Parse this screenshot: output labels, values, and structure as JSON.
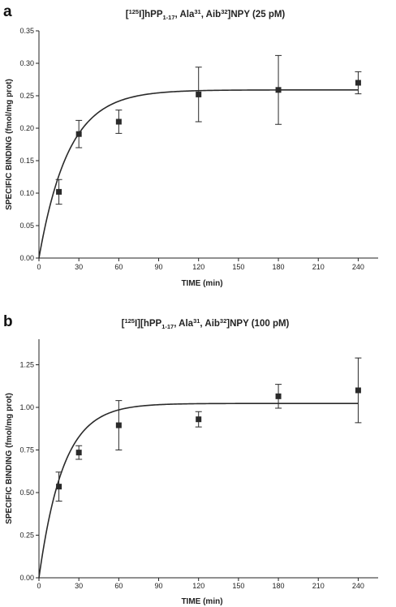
{
  "chart_data": [
    {
      "type": "scatter",
      "panel": "a",
      "title": {
        "parts": [
          {
            "t": "["
          },
          {
            "t": "125",
            "sup": true
          },
          {
            "t": "I]hPP"
          },
          {
            "t": "1-17",
            "sub": true
          },
          {
            "t": ", Ala"
          },
          {
            "t": "31",
            "sup": true
          },
          {
            "t": ", Aib"
          },
          {
            "t": "32",
            "sup": true
          },
          {
            "t": "]NPY (25 pM)"
          }
        ]
      },
      "xlabel": "TIME (min)",
      "ylabel": "SPECIFIC BINDING (fmol/mg prot)",
      "xlim": [
        0,
        255
      ],
      "ylim": [
        0,
        0.35
      ],
      "xticks": [
        0,
        30,
        60,
        90,
        120,
        150,
        180,
        210,
        240
      ],
      "xtick_labels": [
        "0",
        "30",
        "60",
        "90",
        "120",
        "150",
        "180",
        "210",
        "240"
      ],
      "yticks": [
        0,
        0.05,
        0.1,
        0.15,
        0.2,
        0.25,
        0.3,
        0.35
      ],
      "ytick_labels": [
        "0.00",
        "0.05",
        "0.10",
        "0.15",
        "0.20",
        "0.25",
        "0.30",
        "0.35"
      ],
      "points": [
        {
          "x": 15,
          "y": 0.102,
          "err": 0.019
        },
        {
          "x": 30,
          "y": 0.191,
          "err": 0.021
        },
        {
          "x": 60,
          "y": 0.21,
          "err": 0.018
        },
        {
          "x": 120,
          "y": 0.252,
          "err": 0.042
        },
        {
          "x": 180,
          "y": 0.259,
          "err": 0.053
        },
        {
          "x": 240,
          "y": 0.27,
          "err": 0.017
        }
      ],
      "fit": {
        "model": "one-phase association",
        "ymax": 0.259,
        "k": 0.045,
        "x_end": 240
      },
      "grid": false,
      "legend": "none"
    },
    {
      "type": "scatter",
      "panel": "b",
      "title": {
        "parts": [
          {
            "t": "["
          },
          {
            "t": "125",
            "sup": true
          },
          {
            "t": "I][hPP"
          },
          {
            "t": "1-17",
            "sub": true
          },
          {
            "t": ", Ala"
          },
          {
            "t": "31",
            "sup": true
          },
          {
            "t": ", Aib"
          },
          {
            "t": "32",
            "sup": true
          },
          {
            "t": "]NPY (100 pM)"
          }
        ]
      },
      "xlabel": "TIME (min)",
      "ylabel": "SPECIFIC BINDING (fmol/mg prot)",
      "xlim": [
        0,
        255
      ],
      "ylim": [
        0,
        1.4
      ],
      "xticks": [
        0,
        30,
        60,
        90,
        120,
        150,
        180,
        210,
        240
      ],
      "xtick_labels": [
        "0",
        "30",
        "60",
        "90",
        "120",
        "150",
        "180",
        "210",
        "240"
      ],
      "yticks": [
        0,
        0.25,
        0.5,
        0.75,
        1.0,
        1.25
      ],
      "ytick_labels": [
        "0.00",
        "0.25",
        "0.50",
        "0.75",
        "1.00",
        "1.25"
      ],
      "points": [
        {
          "x": 15,
          "y": 0.535,
          "err": 0.085
        },
        {
          "x": 30,
          "y": 0.735,
          "err": 0.04
        },
        {
          "x": 60,
          "y": 0.895,
          "err": 0.145
        },
        {
          "x": 120,
          "y": 0.93,
          "err": 0.045
        },
        {
          "x": 180,
          "y": 1.065,
          "err": 0.07
        },
        {
          "x": 240,
          "y": 1.1,
          "err": 0.19
        }
      ],
      "fit": {
        "model": "one-phase association",
        "ymax": 1.023,
        "k": 0.055,
        "x_end": 240
      },
      "grid": false,
      "legend": "none"
    }
  ]
}
